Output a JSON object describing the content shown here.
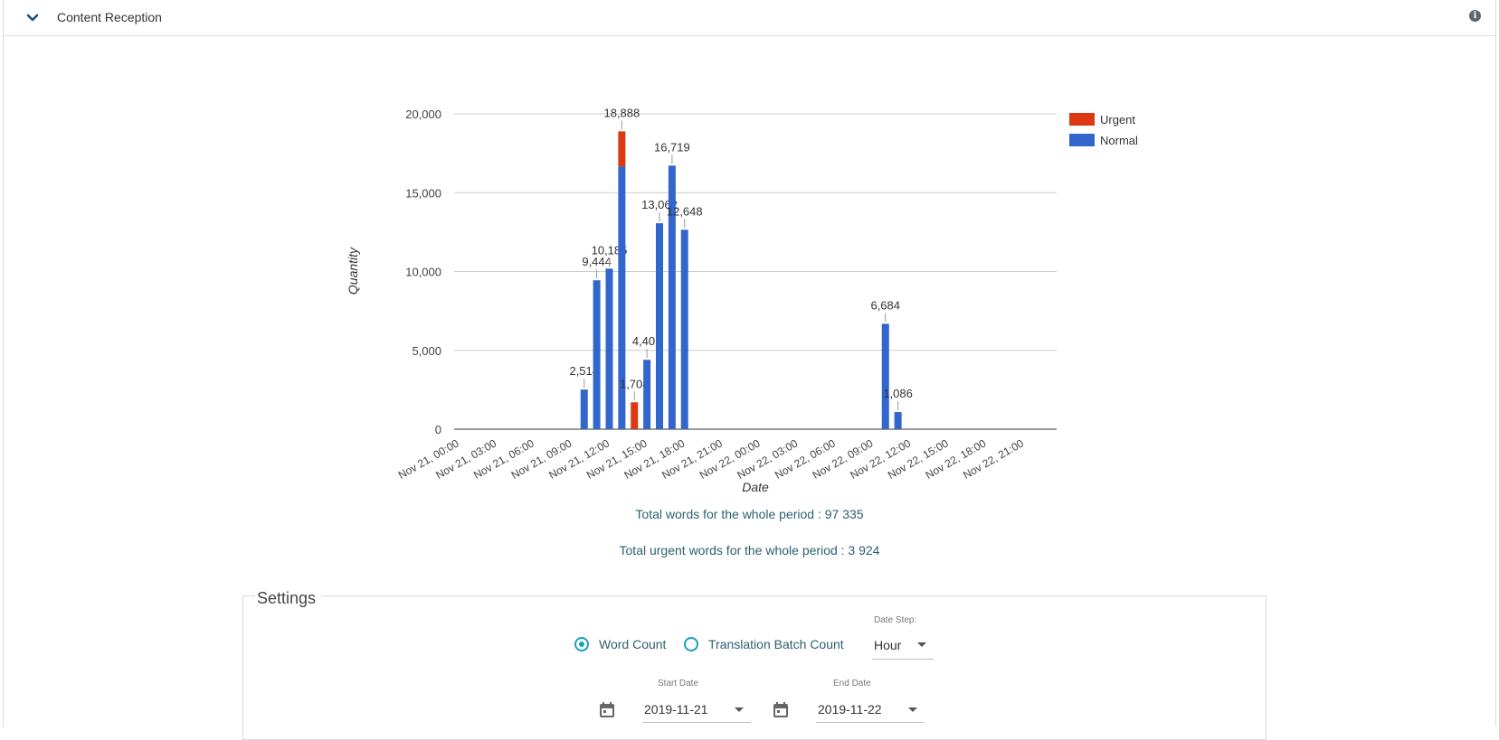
{
  "header": {
    "title": "Content Reception",
    "collapse_icon": "chevron-down-icon",
    "info_icon": "info-icon"
  },
  "chart_data": {
    "type": "bar",
    "stacked": true,
    "xlabel": "Date",
    "ylabel": "Quantity",
    "ylim": [
      0,
      20000
    ],
    "yticks": [
      0,
      5000,
      10000,
      15000,
      20000
    ],
    "ytick_labels": [
      "0",
      "5,000",
      "10,000",
      "15,000",
      "20,000"
    ],
    "xtick_labels": [
      "Nov 21, 00:00",
      "Nov 21, 03:00",
      "Nov 21, 06:00",
      "Nov 21, 09:00",
      "Nov 21, 12:00",
      "Nov 21, 15:00",
      "Nov 21, 18:00",
      "Nov 21, 21:00",
      "Nov 22, 00:00",
      "Nov 22, 03:00",
      "Nov 22, 06:00",
      "Nov 22, 09:00",
      "Nov 22, 12:00",
      "Nov 22, 15:00",
      "Nov 22, 18:00",
      "Nov 22, 21:00"
    ],
    "legend_position": "top-right",
    "series": [
      {
        "name": "Urgent",
        "color": "#dc3912"
      },
      {
        "name": "Normal",
        "color": "#3366cc"
      }
    ],
    "bars": [
      {
        "x": "Nov 21, 10:00",
        "urgent": 0,
        "normal": 2514,
        "label": "2,514"
      },
      {
        "x": "Nov 21, 11:00",
        "urgent": 0,
        "normal": 9444,
        "label": "9,444"
      },
      {
        "x": "Nov 21, 12:00",
        "urgent": 0,
        "normal": 10185,
        "label": "10,185"
      },
      {
        "x": "Nov 21, 13:00",
        "urgent": 2220,
        "normal": 16668,
        "label": "18,888"
      },
      {
        "x": "Nov 21, 14:00",
        "urgent": 1704,
        "normal": 0,
        "label": "1,704"
      },
      {
        "x": "Nov 21, 15:00",
        "urgent": 0,
        "normal": 4401,
        "label": "4,401"
      },
      {
        "x": "Nov 21, 16:00",
        "urgent": 0,
        "normal": 13062,
        "label": "13,062"
      },
      {
        "x": "Nov 21, 17:00",
        "urgent": 0,
        "normal": 16719,
        "label": "16,719"
      },
      {
        "x": "Nov 21, 18:00",
        "urgent": 0,
        "normal": 12648,
        "label": "12,648"
      },
      {
        "x": "Nov 22, 10:00",
        "urgent": 0,
        "normal": 6684,
        "label": "6,684"
      },
      {
        "x": "Nov 22, 11:00",
        "urgent": 0,
        "normal": 1086,
        "label": "1,086"
      }
    ]
  },
  "totals": {
    "total_words": "Total words for the whole period : 97 335",
    "total_urgent": "Total urgent words for the whole period : 3 924"
  },
  "settings": {
    "title": "Settings",
    "radio_word_count": "Word Count",
    "radio_batch_count": "Translation Batch Count",
    "selected": "word_count",
    "date_step_label": "Date Step:",
    "date_step_value": "Hour",
    "start_date_label": "Start Date",
    "start_date_value": "2019-11-21",
    "end_date_label": "End Date",
    "end_date_value": "2019-11-22",
    "accent_color": "#17a2b8"
  }
}
